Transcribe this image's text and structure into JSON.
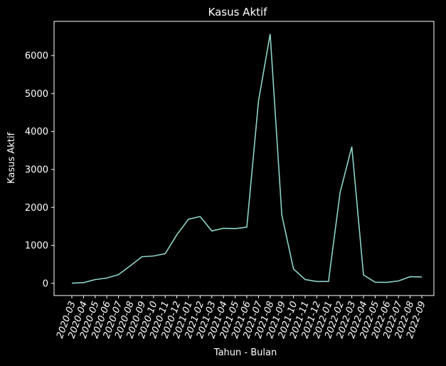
{
  "chart_data": {
    "type": "line",
    "title": "Kasus Aktif",
    "xlabel": "Tahun - Bulan",
    "ylabel": "Kasus Aktif",
    "categories": [
      "2020-03",
      "2020-04",
      "2020-05",
      "2020-06",
      "2020-07",
      "2020-08",
      "2020-09",
      "2020-10",
      "2020-11",
      "2020-12",
      "2021-01",
      "2021-02",
      "2021-03",
      "2021-04",
      "2021-05",
      "2021-06",
      "2021-07",
      "2021-08",
      "2021-09",
      "2021-10",
      "2021-11",
      "2021-12",
      "2022-01",
      "2022-02",
      "2022-03",
      "2022-04",
      "2022-05",
      "2022-06",
      "2022-07",
      "2022-08",
      "2022-09"
    ],
    "series": [
      {
        "values": [
          5,
          20,
          100,
          140,
          230,
          460,
          700,
          720,
          780,
          1280,
          1690,
          1760,
          1380,
          1450,
          1440,
          1480,
          4800,
          6570,
          1800,
          380,
          100,
          50,
          50,
          2400,
          3600,
          220,
          30,
          25,
          65,
          175,
          170
        ],
        "color": "#8dd3c7"
      }
    ],
    "yticks": [
      "0",
      "1000",
      "2000",
      "3000",
      "4000",
      "5000",
      "6000"
    ],
    "ylim": [
      -320,
      6900
    ],
    "grid": false,
    "legend": "none",
    "background": "#000000",
    "foreground": "#ffffff"
  }
}
